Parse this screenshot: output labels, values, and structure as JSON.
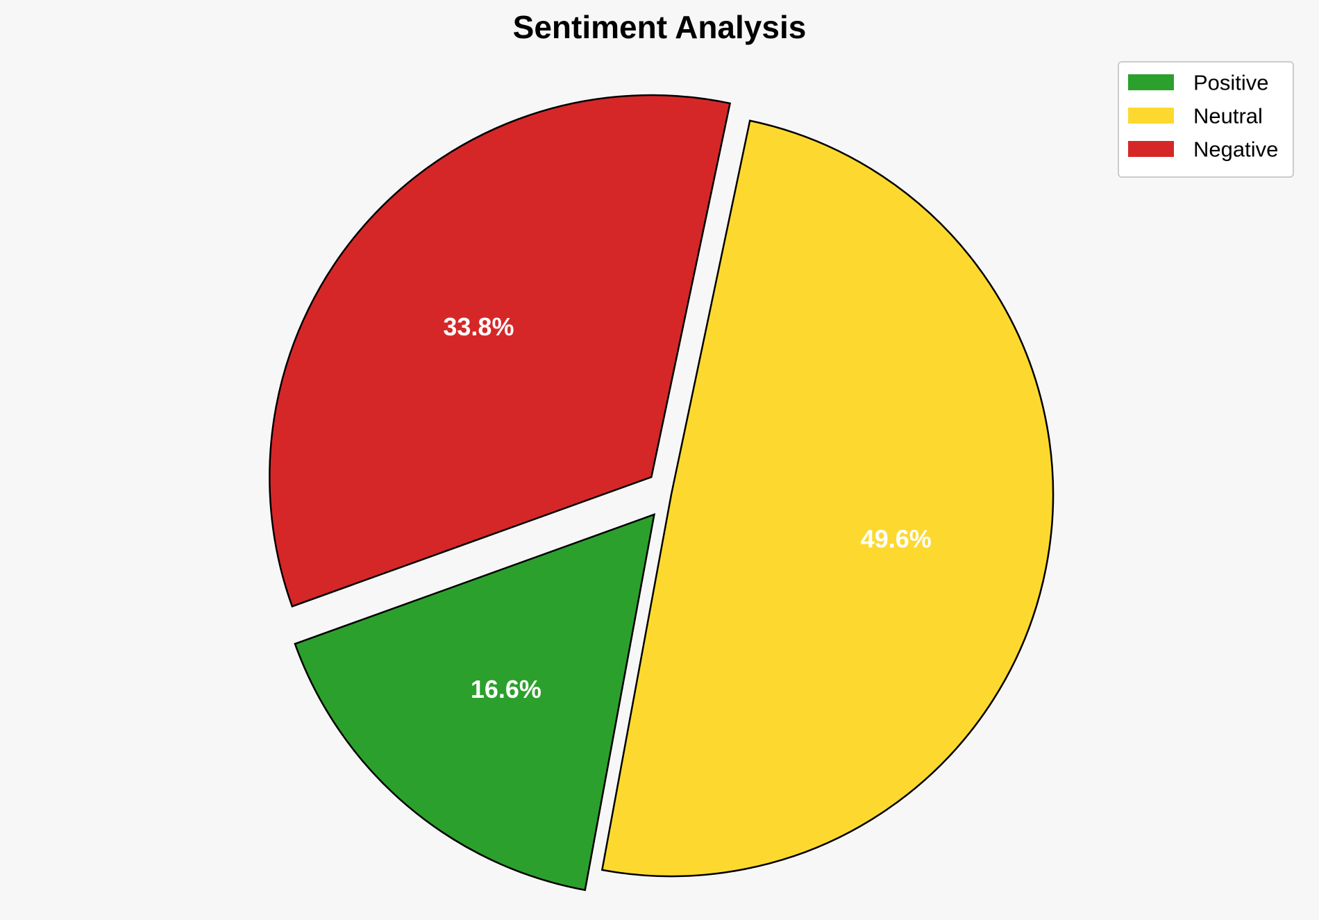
{
  "chart_data": {
    "type": "pie",
    "title": "Sentiment Analysis",
    "slices": [
      {
        "label": "Positive",
        "value": 16.6,
        "display": "16.6%",
        "color": "#2ca02c",
        "exploded": true
      },
      {
        "label": "Neutral",
        "value": 49.6,
        "display": "49.6%",
        "color": "#fdd930",
        "exploded": false
      },
      {
        "label": "Negative",
        "value": 33.8,
        "display": "33.8%",
        "color": "#d62728",
        "exploded": true
      }
    ],
    "legend": {
      "position": "top-right",
      "entries": [
        "Positive",
        "Neutral",
        "Negative"
      ]
    }
  }
}
